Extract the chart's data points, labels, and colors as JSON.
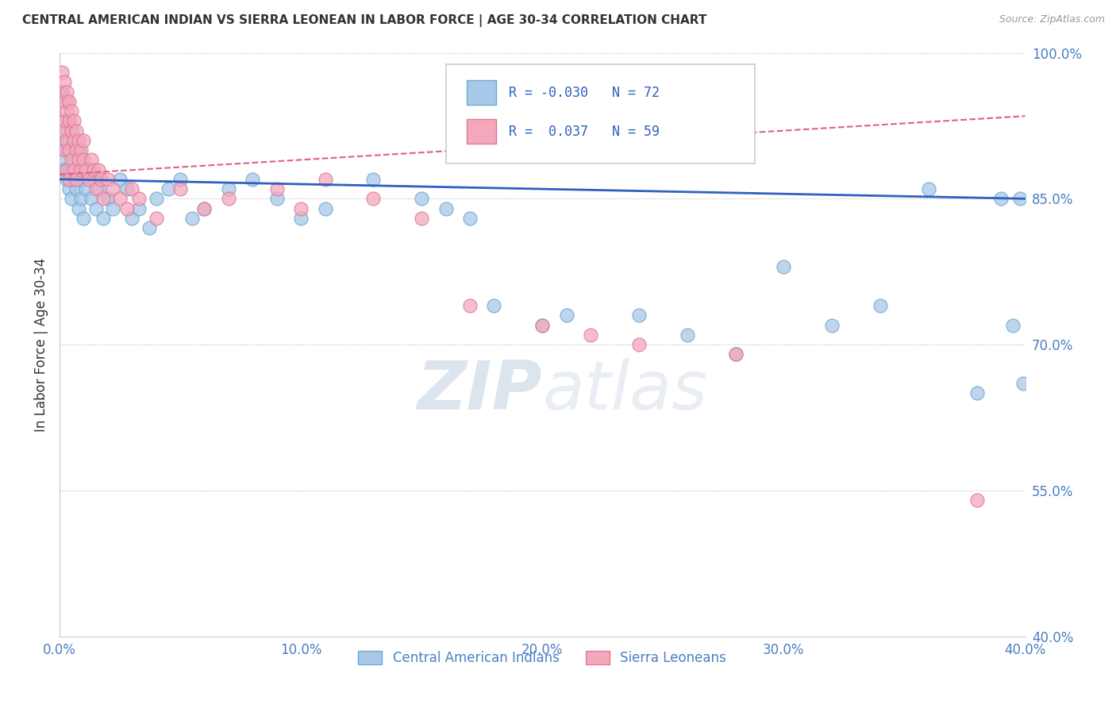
{
  "title": "CENTRAL AMERICAN INDIAN VS SIERRA LEONEAN IN LABOR FORCE | AGE 30-34 CORRELATION CHART",
  "source": "Source: ZipAtlas.com",
  "ylabel": "In Labor Force | Age 30-34",
  "xlim": [
    0.0,
    0.4
  ],
  "ylim": [
    0.4,
    1.0
  ],
  "xtick_vals": [
    0.0,
    0.1,
    0.2,
    0.3,
    0.4
  ],
  "ytick_vals": [
    0.4,
    0.55,
    0.7,
    0.85,
    1.0
  ],
  "xtick_labels": [
    "0.0%",
    "10.0%",
    "20.0%",
    "30.0%",
    "40.0%"
  ],
  "ytick_labels": [
    "40.0%",
    "55.0%",
    "70.0%",
    "85.0%",
    "100.0%"
  ],
  "blue_fill": "#a8c8e8",
  "blue_edge": "#6aaad4",
  "pink_fill": "#f4a8bc",
  "pink_edge": "#e07898",
  "trend_blue_color": "#3060c0",
  "trend_pink_color": "#e06080",
  "R_blue": -0.03,
  "N_blue": 72,
  "R_pink": 0.037,
  "N_pink": 59,
  "legend_label_blue": "Central American Indians",
  "legend_label_pink": "Sierra Leoneans",
  "watermark_zip": "ZIP",
  "watermark_atlas": "atlas",
  "blue_x": [
    0.001,
    0.001,
    0.002,
    0.002,
    0.002,
    0.003,
    0.003,
    0.003,
    0.003,
    0.004,
    0.004,
    0.004,
    0.004,
    0.005,
    0.005,
    0.005,
    0.005,
    0.006,
    0.006,
    0.006,
    0.007,
    0.007,
    0.008,
    0.008,
    0.008,
    0.009,
    0.009,
    0.01,
    0.01,
    0.011,
    0.012,
    0.013,
    0.014,
    0.015,
    0.016,
    0.018,
    0.02,
    0.022,
    0.025,
    0.028,
    0.03,
    0.033,
    0.037,
    0.04,
    0.045,
    0.05,
    0.055,
    0.06,
    0.07,
    0.08,
    0.09,
    0.1,
    0.11,
    0.13,
    0.15,
    0.16,
    0.17,
    0.18,
    0.2,
    0.21,
    0.24,
    0.26,
    0.28,
    0.3,
    0.32,
    0.34,
    0.36,
    0.38,
    0.39,
    0.395,
    0.398,
    0.399
  ],
  "blue_y": [
    0.96,
    0.89,
    0.93,
    0.88,
    0.91,
    0.87,
    0.92,
    0.9,
    0.95,
    0.91,
    0.88,
    0.93,
    0.86,
    0.9,
    0.88,
    0.92,
    0.85,
    0.89,
    0.87,
    0.91,
    0.86,
    0.88,
    0.9,
    0.84,
    0.87,
    0.85,
    0.89,
    0.87,
    0.83,
    0.86,
    0.88,
    0.85,
    0.87,
    0.84,
    0.86,
    0.83,
    0.85,
    0.84,
    0.87,
    0.86,
    0.83,
    0.84,
    0.82,
    0.85,
    0.86,
    0.87,
    0.83,
    0.84,
    0.86,
    0.87,
    0.85,
    0.83,
    0.84,
    0.87,
    0.85,
    0.84,
    0.83,
    0.74,
    0.72,
    0.73,
    0.73,
    0.71,
    0.69,
    0.78,
    0.72,
    0.74,
    0.86,
    0.65,
    0.85,
    0.72,
    0.85,
    0.66
  ],
  "pink_x": [
    0.001,
    0.001,
    0.001,
    0.002,
    0.002,
    0.002,
    0.002,
    0.003,
    0.003,
    0.003,
    0.003,
    0.004,
    0.004,
    0.004,
    0.004,
    0.005,
    0.005,
    0.005,
    0.006,
    0.006,
    0.006,
    0.007,
    0.007,
    0.007,
    0.008,
    0.008,
    0.009,
    0.009,
    0.01,
    0.01,
    0.011,
    0.012,
    0.013,
    0.014,
    0.015,
    0.016,
    0.017,
    0.018,
    0.02,
    0.022,
    0.025,
    0.028,
    0.03,
    0.033,
    0.04,
    0.05,
    0.06,
    0.07,
    0.09,
    0.1,
    0.11,
    0.13,
    0.15,
    0.17,
    0.2,
    0.22,
    0.24,
    0.28,
    0.38
  ],
  "pink_y": [
    0.98,
    0.96,
    0.92,
    0.97,
    0.95,
    0.93,
    0.9,
    0.96,
    0.94,
    0.91,
    0.88,
    0.95,
    0.93,
    0.9,
    0.87,
    0.94,
    0.92,
    0.89,
    0.93,
    0.91,
    0.88,
    0.92,
    0.9,
    0.87,
    0.91,
    0.89,
    0.9,
    0.88,
    0.91,
    0.89,
    0.88,
    0.87,
    0.89,
    0.88,
    0.86,
    0.88,
    0.87,
    0.85,
    0.87,
    0.86,
    0.85,
    0.84,
    0.86,
    0.85,
    0.83,
    0.86,
    0.84,
    0.85,
    0.86,
    0.84,
    0.87,
    0.85,
    0.83,
    0.74,
    0.72,
    0.71,
    0.7,
    0.69,
    0.54
  ],
  "blue_trend_x0": 0.0,
  "blue_trend_y0": 0.87,
  "blue_trend_x1": 0.4,
  "blue_trend_y1": 0.85,
  "pink_trend_x0": 0.0,
  "pink_trend_y0": 0.875,
  "pink_trend_x1": 0.4,
  "pink_trend_y1": 0.935
}
